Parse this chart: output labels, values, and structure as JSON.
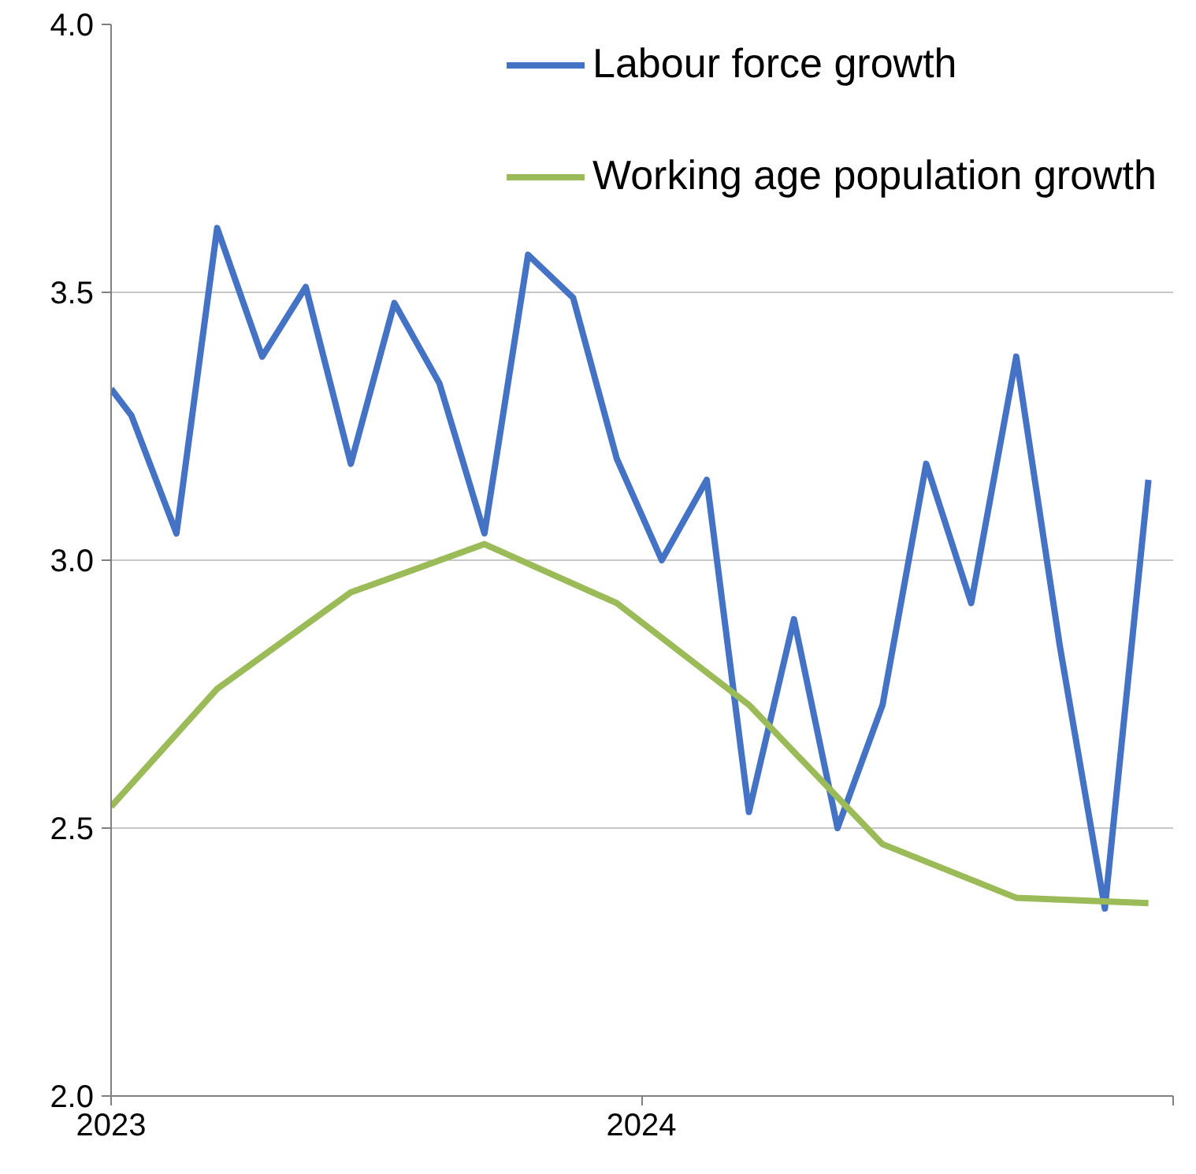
{
  "chart_data": {
    "type": "line",
    "xlim": [
      "2023-01-01",
      "2025-01-01"
    ],
    "xticks": [
      "2023",
      "2024",
      {
        "value": "2025",
        "label": null
      }
    ],
    "ylim": [
      2.0,
      4.0
    ],
    "yticks": [
      {
        "value": 2.0,
        "label": "2.0"
      },
      {
        "value": 2.5,
        "label": "2.5"
      },
      {
        "value": 3.0,
        "label": "3.0"
      },
      {
        "value": 3.5,
        "label": "3.5"
      },
      {
        "value": 4.0,
        "label": "4.0"
      }
    ],
    "grid": "y",
    "legend": "top right",
    "line_style": "solid",
    "marker": "none",
    "series": [
      {
        "name": "Labour force growth",
        "color": "#4472c4",
        "x": [
          "2023-01-01",
          "2023-01-15",
          "2023-02-15",
          "2023-03-15",
          "2023-04-15",
          "2023-05-15",
          "2023-06-15",
          "2023-07-15",
          "2023-08-15",
          "2023-09-15",
          "2023-10-15",
          "2023-11-15",
          "2023-12-15",
          "2024-01-15",
          "2024-02-15",
          "2024-03-15",
          "2024-04-15",
          "2024-05-15",
          "2024-06-15",
          "2024-07-15",
          "2024-08-15",
          "2024-09-15",
          "2024-10-15",
          "2024-11-15",
          "2024-12-15"
        ],
        "values": [
          3.32,
          3.27,
          3.05,
          3.62,
          3.38,
          3.51,
          3.18,
          3.48,
          3.33,
          3.05,
          3.57,
          3.49,
          3.19,
          3.0,
          3.15,
          2.53,
          2.89,
          2.5,
          2.73,
          3.18,
          2.92,
          3.38,
          2.84,
          2.35,
          3.15
        ]
      },
      {
        "name": "Working age population growth",
        "color": "#9bbb59",
        "x": [
          "2023-01-01",
          "2023-03-15",
          "2023-06-15",
          "2023-09-15",
          "2023-12-15",
          "2024-03-15",
          "2024-06-15",
          "2024-09-15",
          "2024-12-15"
        ],
        "values": [
          2.54,
          2.76,
          2.94,
          3.03,
          2.92,
          2.73,
          2.47,
          2.37,
          2.36
        ]
      }
    ]
  }
}
